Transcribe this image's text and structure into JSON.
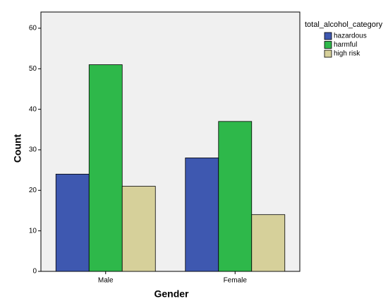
{
  "chart_data": {
    "type": "bar",
    "x_label": "Gender",
    "y_label": "Count",
    "legend_title": "total_alcohol_category",
    "categories": [
      "Male",
      "Female"
    ],
    "series": [
      {
        "name": "hazardous",
        "color": "#3e58b0",
        "values": [
          24,
          28
        ]
      },
      {
        "name": "harmful",
        "color": "#2eb84a",
        "values": [
          51,
          37
        ]
      },
      {
        "name": "high risk",
        "color": "#d6d09a",
        "values": [
          21,
          14
        ]
      }
    ],
    "ylim": [
      0,
      64
    ],
    "yticks": [
      0,
      10,
      20,
      30,
      40,
      50,
      60
    ],
    "legend_position": "right"
  }
}
